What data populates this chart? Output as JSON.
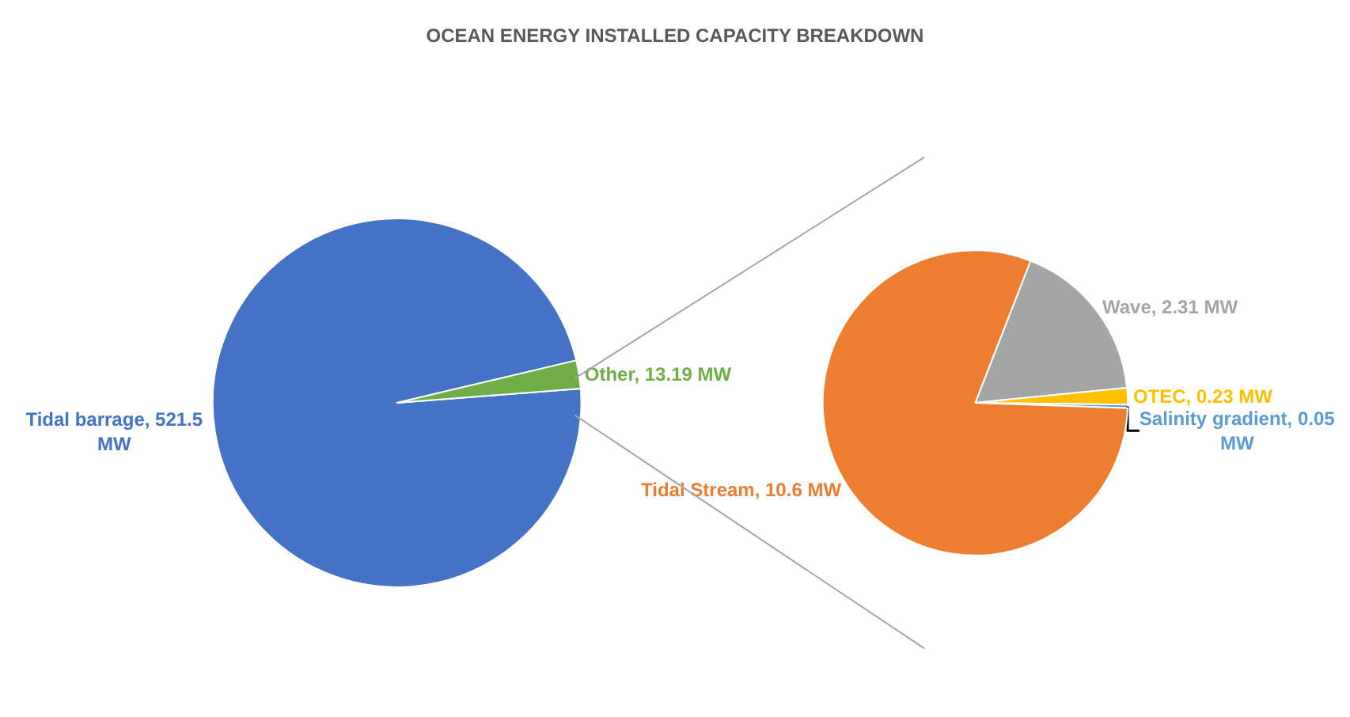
{
  "chart_data": [
    {
      "type": "pie",
      "title": "OCEAN ENERGY INSTALLED CAPACITY BREAKDOWN",
      "categories": [
        "Tidal barrage",
        "Other"
      ],
      "values": [
        521.5,
        13.19
      ],
      "colors": [
        "#4472c4",
        "#70ad47"
      ],
      "value_labels": [
        "521.5 MW",
        "13.19 MW"
      ]
    },
    {
      "type": "pie",
      "categories": [
        "Wave",
        "OTEC",
        "Salinity gradient",
        "Tidal Stream"
      ],
      "values": [
        2.31,
        0.23,
        0.05,
        10.6
      ],
      "colors": [
        "#a5a5a5",
        "#ffc000",
        "#5b9bd5",
        "#ed7d31"
      ],
      "value_labels": [
        "2.31 MW",
        "0.23 MW",
        "0.05 MW",
        "10.6 MW"
      ]
    }
  ]
}
